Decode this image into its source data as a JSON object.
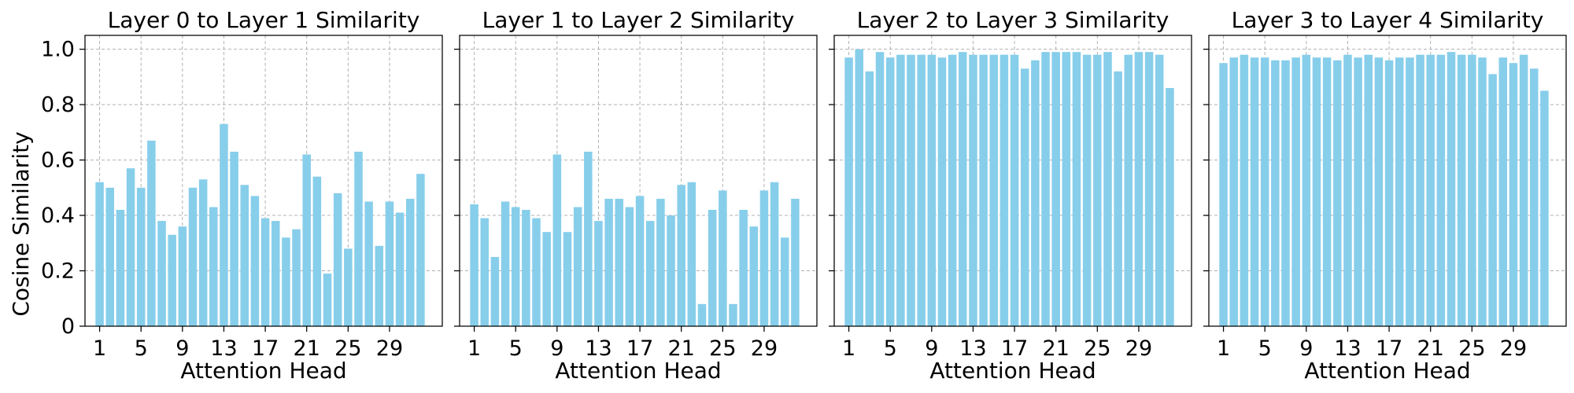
{
  "chart_data": [
    {
      "type": "bar",
      "title": "Layer 0 to Layer 1 Similarity",
      "xlabel": "Attention Head",
      "ylabel": "Cosine Similarity",
      "ylim": [
        0,
        1.05
      ],
      "yticks": [
        "0",
        "0.2",
        "0.4",
        "0.6",
        "0.8",
        "1.0"
      ],
      "xticks": [
        "1",
        "5",
        "9",
        "13",
        "17",
        "21",
        "25",
        "29"
      ],
      "grid": true,
      "color": "#87ceeb",
      "categories": [
        1,
        2,
        3,
        4,
        5,
        6,
        7,
        8,
        9,
        10,
        11,
        12,
        13,
        14,
        15,
        16,
        17,
        18,
        19,
        20,
        21,
        22,
        23,
        24,
        25,
        26,
        27,
        28,
        29,
        30,
        31,
        32
      ],
      "values": [
        0.52,
        0.5,
        0.42,
        0.57,
        0.5,
        0.67,
        0.38,
        0.33,
        0.36,
        0.5,
        0.53,
        0.43,
        0.73,
        0.63,
        0.51,
        0.47,
        0.39,
        0.38,
        0.32,
        0.35,
        0.62,
        0.54,
        0.19,
        0.48,
        0.28,
        0.63,
        0.45,
        0.29,
        0.45,
        0.41,
        0.46,
        0.55
      ]
    },
    {
      "type": "bar",
      "title": "Layer 1 to Layer 2 Similarity",
      "xlabel": "Attention Head",
      "ylabel": "",
      "ylim": [
        0,
        1.05
      ],
      "yticks": [
        "0",
        "0.2",
        "0.4",
        "0.6",
        "0.8",
        "1.0"
      ],
      "xticks": [
        "1",
        "5",
        "9",
        "13",
        "17",
        "21",
        "25",
        "29"
      ],
      "grid": true,
      "color": "#87ceeb",
      "categories": [
        1,
        2,
        3,
        4,
        5,
        6,
        7,
        8,
        9,
        10,
        11,
        12,
        13,
        14,
        15,
        16,
        17,
        18,
        19,
        20,
        21,
        22,
        23,
        24,
        25,
        26,
        27,
        28,
        29,
        30,
        31,
        32
      ],
      "values": [
        0.44,
        0.39,
        0.25,
        0.45,
        0.43,
        0.42,
        0.39,
        0.34,
        0.62,
        0.34,
        0.43,
        0.63,
        0.38,
        0.46,
        0.46,
        0.43,
        0.47,
        0.38,
        0.46,
        0.4,
        0.51,
        0.52,
        0.08,
        0.42,
        0.49,
        0.08,
        0.42,
        0.36,
        0.49,
        0.52,
        0.32,
        0.46
      ]
    },
    {
      "type": "bar",
      "title": "Layer 2 to Layer 3 Similarity",
      "xlabel": "Attention Head",
      "ylabel": "",
      "ylim": [
        0,
        1.05
      ],
      "yticks": [
        "0",
        "0.2",
        "0.4",
        "0.6",
        "0.8",
        "1.0"
      ],
      "xticks": [
        "1",
        "5",
        "9",
        "13",
        "17",
        "21",
        "25",
        "29"
      ],
      "grid": true,
      "color": "#87ceeb",
      "categories": [
        1,
        2,
        3,
        4,
        5,
        6,
        7,
        8,
        9,
        10,
        11,
        12,
        13,
        14,
        15,
        16,
        17,
        18,
        19,
        20,
        21,
        22,
        23,
        24,
        25,
        26,
        27,
        28,
        29,
        30,
        31,
        32
      ],
      "values": [
        0.97,
        1.0,
        0.92,
        0.99,
        0.97,
        0.98,
        0.98,
        0.98,
        0.98,
        0.97,
        0.98,
        0.99,
        0.98,
        0.98,
        0.98,
        0.98,
        0.98,
        0.93,
        0.96,
        0.99,
        0.99,
        0.99,
        0.99,
        0.98,
        0.98,
        0.99,
        0.92,
        0.98,
        0.99,
        0.99,
        0.98,
        0.86
      ]
    },
    {
      "type": "bar",
      "title": "Layer 3 to Layer 4 Similarity",
      "xlabel": "Attention Head",
      "ylabel": "",
      "ylim": [
        0,
        1.05
      ],
      "yticks": [
        "0",
        "0.2",
        "0.4",
        "0.6",
        "0.8",
        "1.0"
      ],
      "xticks": [
        "1",
        "5",
        "9",
        "13",
        "17",
        "21",
        "25",
        "29"
      ],
      "grid": true,
      "color": "#87ceeb",
      "categories": [
        1,
        2,
        3,
        4,
        5,
        6,
        7,
        8,
        9,
        10,
        11,
        12,
        13,
        14,
        15,
        16,
        17,
        18,
        19,
        20,
        21,
        22,
        23,
        24,
        25,
        26,
        27,
        28,
        29,
        30,
        31,
        32
      ],
      "values": [
        0.95,
        0.97,
        0.98,
        0.97,
        0.97,
        0.96,
        0.96,
        0.97,
        0.98,
        0.97,
        0.97,
        0.96,
        0.98,
        0.97,
        0.98,
        0.97,
        0.96,
        0.97,
        0.97,
        0.98,
        0.98,
        0.98,
        0.99,
        0.98,
        0.98,
        0.97,
        0.91,
        0.97,
        0.95,
        0.98,
        0.93,
        0.85
      ]
    }
  ]
}
